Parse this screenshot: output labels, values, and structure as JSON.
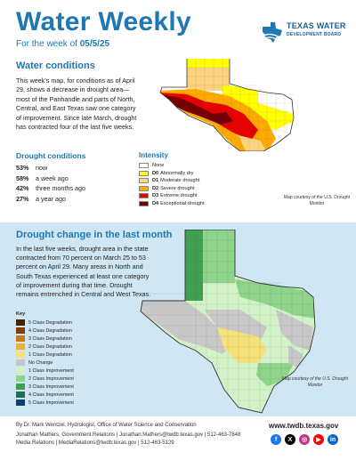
{
  "header": {
    "title": "Water Weekly",
    "week_prefix": "For the week of ",
    "week_date": "05/5/25",
    "logo_line1": "TEXAS WATER",
    "logo_line2": "DEVELOPMENT BOARD"
  },
  "water_conditions": {
    "heading": "Water conditions",
    "body": "This week's map, for conditions as of April 29, shows a decrease in drought area—most of the Panhandle and parts of North, Central, and East Texas saw one category of improvement. Since late March, drought has contracted four of the last five weeks."
  },
  "drought_conditions": {
    "heading": "Drought conditions",
    "rows": [
      {
        "pct": "53%",
        "label": "now"
      },
      {
        "pct": "58%",
        "label": "a week ago"
      },
      {
        "pct": "42%",
        "label": "three months ago"
      },
      {
        "pct": "27%",
        "label": "a year ago"
      }
    ]
  },
  "intensity": {
    "heading": "Intensity",
    "items": [
      {
        "code": "",
        "label": "None",
        "color": "#ffffff"
      },
      {
        "code": "D0",
        "label": "Abnormally dry",
        "color": "#ffff00"
      },
      {
        "code": "D1",
        "label": "Moderate drought",
        "color": "#fcd37f"
      },
      {
        "code": "D2",
        "label": "Severe drought",
        "color": "#ffaa00"
      },
      {
        "code": "D3",
        "label": "Extreme drought",
        "color": "#e60000"
      },
      {
        "code": "D4",
        "label": "Exceptional drought",
        "color": "#730000"
      }
    ],
    "credit": "Map courtesy of the U.S. Drought Monitor"
  },
  "drought_change": {
    "heading": "Drought change in the last month",
    "body": "In the last five weeks, drought area in the state contracted from 70 percent on March 25 to 53 percent on April 29. Many areas in North and South Texas experienced at least one category of improvement during that time. Drought remains entrenched in Central and West Texas.",
    "key_heading": "Key",
    "key": [
      {
        "label": "5 Class Degradation",
        "color": "#4a2200"
      },
      {
        "label": "4 Class Degradation",
        "color": "#7f3f00"
      },
      {
        "label": "3 Class Degradation",
        "color": "#c87a1a"
      },
      {
        "label": "2 Class Degradation",
        "color": "#f0b030"
      },
      {
        "label": "1 Class Degradation",
        "color": "#f6e27a"
      },
      {
        "label": "No Change",
        "color": "#c8c8c8"
      },
      {
        "label": "1 Class Improvement",
        "color": "#d2f2c8"
      },
      {
        "label": "2 Class Improvement",
        "color": "#8ed48a"
      },
      {
        "label": "3 Class Improvement",
        "color": "#3fa150"
      },
      {
        "label": "4 Class Improvement",
        "color": "#1e6e5a"
      },
      {
        "label": "5 Class Improvement",
        "color": "#0f3e6e"
      }
    ],
    "credit": "Map courtesy of the U.S. Drought Monitor"
  },
  "footer": {
    "byline": "By Dr. Mark Wentzel, Hydrologist, Office of Water Science and Conservation",
    "line2": "Jonathan Mathers, Government Relations | Jonathan.Mathers@twdb.texas.gov | 512-463-7848",
    "line3": "Media Relations | MediaRelations@twdb.texas.gov | 512-463-5129",
    "url": "www.twdb.texas.gov",
    "social": [
      {
        "name": "facebook-icon",
        "glyph": "f",
        "color": "#1877f2"
      },
      {
        "name": "x-icon",
        "glyph": "X",
        "color": "#000000"
      },
      {
        "name": "instagram-icon",
        "glyph": "◎",
        "color": "#c13584"
      },
      {
        "name": "youtube-icon",
        "glyph": "▶",
        "color": "#ff0000"
      },
      {
        "name": "linkedin-icon",
        "glyph": "in",
        "color": "#0a66c2"
      }
    ]
  }
}
